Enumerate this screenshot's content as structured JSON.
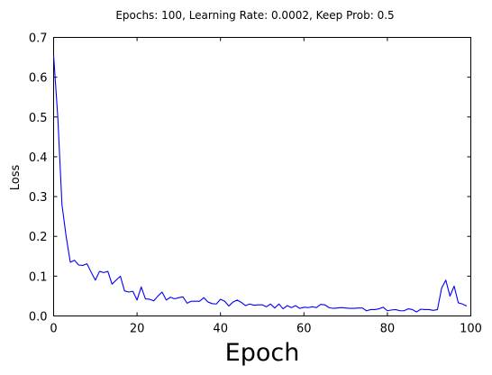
{
  "chart_data": {
    "type": "line",
    "title": "Epochs: 100, Learning Rate: 0.0002, Keep Prob: 0.5",
    "xlabel": "Epoch",
    "ylabel": "Loss",
    "xlim": [
      0,
      100
    ],
    "ylim": [
      0,
      0.7
    ],
    "xticks": [
      0,
      20,
      40,
      60,
      80,
      100
    ],
    "yticks": [
      0.0,
      0.1,
      0.2,
      0.3,
      0.4,
      0.5,
      0.6,
      0.7
    ],
    "grid": false,
    "series": [
      {
        "color": "#0000ff",
        "x": [
          0,
          1,
          2,
          3,
          4,
          5,
          6,
          7,
          8,
          9,
          10,
          11,
          12,
          13,
          14,
          15,
          16,
          17,
          18,
          19,
          20,
          21,
          22,
          23,
          24,
          25,
          26,
          27,
          28,
          29,
          30,
          31,
          32,
          33,
          34,
          35,
          36,
          37,
          38,
          39,
          40,
          41,
          42,
          43,
          44,
          45,
          46,
          47,
          48,
          49,
          50,
          51,
          52,
          53,
          54,
          55,
          56,
          57,
          58,
          59,
          60,
          61,
          62,
          63,
          64,
          65,
          66,
          67,
          68,
          69,
          70,
          71,
          72,
          73,
          74,
          75,
          76,
          77,
          78,
          79,
          80,
          81,
          82,
          83,
          84,
          85,
          86,
          87,
          88,
          89,
          90,
          91,
          92,
          93,
          94,
          95,
          96,
          97,
          98,
          99
        ],
        "y": [
          0.655,
          0.5,
          0.28,
          0.2,
          0.135,
          0.14,
          0.128,
          0.127,
          0.131,
          0.11,
          0.09,
          0.112,
          0.109,
          0.112,
          0.08,
          0.09,
          0.1,
          0.063,
          0.06,
          0.062,
          0.04,
          0.073,
          0.043,
          0.042,
          0.038,
          0.05,
          0.06,
          0.04,
          0.047,
          0.043,
          0.046,
          0.048,
          0.032,
          0.037,
          0.037,
          0.037,
          0.046,
          0.035,
          0.031,
          0.03,
          0.042,
          0.037,
          0.025,
          0.035,
          0.04,
          0.034,
          0.026,
          0.03,
          0.027,
          0.028,
          0.028,
          0.023,
          0.03,
          0.02,
          0.03,
          0.018,
          0.026,
          0.021,
          0.026,
          0.019,
          0.022,
          0.021,
          0.023,
          0.021,
          0.029,
          0.028,
          0.021,
          0.019,
          0.02,
          0.021,
          0.02,
          0.019,
          0.019,
          0.02,
          0.02,
          0.013,
          0.016,
          0.016,
          0.018,
          0.022,
          0.013,
          0.015,
          0.016,
          0.013,
          0.013,
          0.018,
          0.016,
          0.01,
          0.017,
          0.016,
          0.016,
          0.014,
          0.016,
          0.07,
          0.09,
          0.05,
          0.075,
          0.033,
          0.03,
          0.025
        ]
      }
    ]
  }
}
